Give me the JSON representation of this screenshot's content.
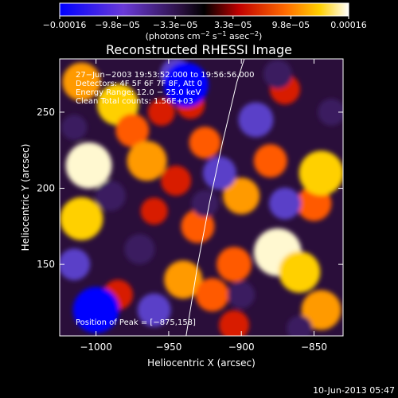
{
  "chart_data": {
    "type": "heatmap",
    "title": "Reconstructed RHESSI Image",
    "xlabel": "Heliocentric X (arcsec)",
    "ylabel": "Heliocentric Y (arcsec)",
    "xlim": [
      -1025,
      -830
    ],
    "ylim": [
      103,
      285
    ],
    "xticks": [
      -1000,
      -950,
      -900,
      -850
    ],
    "xtick_labels": [
      "−1000",
      "−950",
      "−900",
      "−850"
    ],
    "yticks": [
      150,
      200,
      250
    ],
    "ytick_labels": [
      "150",
      "200",
      "250"
    ],
    "colorbar": {
      "range": [
        -0.00016,
        0.00016
      ],
      "tick_labels": [
        "−0.00016",
        "−9.8e−05",
        "−3.3e−05",
        "3.3e−05",
        "9.8e−05",
        "0.00016"
      ],
      "units_main": "(photons cm",
      "units_exp1": "−2",
      "units_mid1": " s",
      "units_exp2": "−1",
      "units_mid2": " asec",
      "units_exp3": "−2",
      "units_end": ")"
    },
    "annotations": [
      "27−Jun−2003 19:53:52.000 to 19:56:56.000",
      "Detectors: 4F 5F 6F 7F 8F, Att 0",
      "Energy Range: 12.0 − 25.0 keV",
      "Clean     Total counts: 1.56E+03"
    ],
    "peak_label": "Position of Peak = [−875,158]",
    "peak": [
      -875,
      158
    ],
    "limb_curve": [
      [
        -938,
        103
      ],
      [
        -930,
        150
      ],
      [
        -922,
        190
      ],
      [
        -913,
        230
      ],
      [
        -903,
        270
      ],
      [
        -898,
        285
      ]
    ],
    "blobs": [
      {
        "x": -1010,
        "y": 270,
        "v": 0.7
      },
      {
        "x": -1005,
        "y": 215,
        "v": 0.95
      },
      {
        "x": -1010,
        "y": 180,
        "v": 0.85
      },
      {
        "x": -985,
        "y": 255,
        "v": 0.8
      },
      {
        "x": -975,
        "y": 238,
        "v": 0.55
      },
      {
        "x": -965,
        "y": 218,
        "v": 0.75
      },
      {
        "x": -955,
        "y": 250,
        "v": 0.35
      },
      {
        "x": -945,
        "y": 205,
        "v": 0.45
      },
      {
        "x": -935,
        "y": 255,
        "v": 0.4
      },
      {
        "x": -925,
        "y": 230,
        "v": 0.5
      },
      {
        "x": -960,
        "y": 185,
        "v": 0.35
      },
      {
        "x": -930,
        "y": 175,
        "v": 0.55
      },
      {
        "x": -940,
        "y": 140,
        "v": 0.7
      },
      {
        "x": -920,
        "y": 130,
        "v": 0.55
      },
      {
        "x": -905,
        "y": 150,
        "v": 0.6
      },
      {
        "x": -900,
        "y": 195,
        "v": 0.65
      },
      {
        "x": -880,
        "y": 218,
        "v": 0.55
      },
      {
        "x": -875,
        "y": 158,
        "v": 1.0
      },
      {
        "x": -860,
        "y": 145,
        "v": 0.8
      },
      {
        "x": -850,
        "y": 190,
        "v": 0.6
      },
      {
        "x": -845,
        "y": 210,
        "v": 0.9
      },
      {
        "x": -845,
        "y": 120,
        "v": 0.75
      },
      {
        "x": -870,
        "y": 265,
        "v": 0.45
      },
      {
        "x": -905,
        "y": 110,
        "v": 0.45
      },
      {
        "x": -985,
        "y": 130,
        "v": 0.45
      },
      {
        "x": -1015,
        "y": 150,
        "v": -0.5
      },
      {
        "x": -1000,
        "y": 120,
        "v": -0.95
      },
      {
        "x": -960,
        "y": 120,
        "v": -0.55
      },
      {
        "x": -945,
        "y": 275,
        "v": -0.5
      },
      {
        "x": -938,
        "y": 268,
        "v": -0.9
      },
      {
        "x": -915,
        "y": 210,
        "v": -0.55
      },
      {
        "x": -890,
        "y": 245,
        "v": -0.6
      },
      {
        "x": -875,
        "y": 275,
        "v": -0.4
      },
      {
        "x": -990,
        "y": 195,
        "v": -0.45
      },
      {
        "x": -925,
        "y": 190,
        "v": -0.35
      },
      {
        "x": -970,
        "y": 160,
        "v": -0.45
      },
      {
        "x": -870,
        "y": 190,
        "v": -0.5
      },
      {
        "x": -838,
        "y": 250,
        "v": -0.35
      },
      {
        "x": -900,
        "y": 130,
        "v": -0.35
      },
      {
        "x": -1015,
        "y": 240,
        "v": -0.3
      },
      {
        "x": -860,
        "y": 108,
        "v": -0.3
      }
    ]
  },
  "footer": {
    "date": "10-Jun-2013 05:47"
  }
}
